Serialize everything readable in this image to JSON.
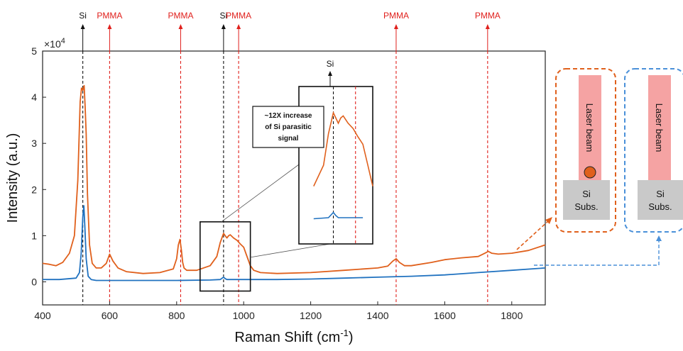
{
  "chart_data": {
    "type": "line",
    "title": "",
    "xlabel": "Raman Shift (cm",
    "xlabel_sup": "-1",
    "xlabel_suffix": ")",
    "ylabel": "Intensity (a.u.)",
    "y_exponent_base": "×10",
    "y_exponent_power": "4",
    "xlim": [
      400,
      1900
    ],
    "ylim": [
      -0.5,
      5
    ],
    "x_ticks": [
      400,
      600,
      800,
      1000,
      1200,
      1400,
      1600,
      1800
    ],
    "y_ticks": [
      0,
      1,
      2,
      3,
      4,
      5
    ],
    "grid": false,
    "series": [
      {
        "color": "#e0601c",
        "x": [
          400,
          420,
          440,
          460,
          480,
          495,
          505,
          512,
          516,
          520,
          524,
          527,
          530,
          534,
          540,
          548,
          560,
          575,
          590,
          600,
          610,
          625,
          650,
          700,
          750,
          790,
          800,
          805,
          810,
          814,
          818,
          822,
          830,
          860,
          900,
          920,
          930,
          940,
          945,
          950,
          955,
          960,
          970,
          980,
          990,
          1000,
          1010,
          1020,
          1030,
          1050,
          1100,
          1200,
          1300,
          1400,
          1430,
          1445,
          1455,
          1465,
          1480,
          1500,
          1560,
          1600,
          1650,
          1700,
          1720,
          1730,
          1740,
          1760,
          1800,
          1850,
          1900
        ],
        "y": [
          0.4,
          0.38,
          0.35,
          0.42,
          0.62,
          1.0,
          2.2,
          3.9,
          4.2,
          4.15,
          4.25,
          3.8,
          3.2,
          1.9,
          0.8,
          0.4,
          0.3,
          0.3,
          0.4,
          0.6,
          0.45,
          0.3,
          0.22,
          0.18,
          0.2,
          0.28,
          0.5,
          0.8,
          0.92,
          0.7,
          0.42,
          0.3,
          0.25,
          0.25,
          0.35,
          0.55,
          0.85,
          1.05,
          1.0,
          0.95,
          1.0,
          1.02,
          0.95,
          0.9,
          0.82,
          0.75,
          0.55,
          0.35,
          0.25,
          0.2,
          0.18,
          0.2,
          0.25,
          0.3,
          0.34,
          0.45,
          0.5,
          0.42,
          0.35,
          0.35,
          0.42,
          0.48,
          0.52,
          0.55,
          0.62,
          0.66,
          0.62,
          0.6,
          0.62,
          0.68,
          0.8
        ]
      },
      {
        "color": "#2072c0",
        "x": [
          400,
          450,
          500,
          510,
          515,
          520,
          523,
          526,
          530,
          536,
          545,
          560,
          600,
          700,
          800,
          900,
          930,
          940,
          945,
          950,
          960,
          1000,
          1100,
          1200,
          1300,
          1400,
          1500,
          1600,
          1700,
          1800,
          1900
        ],
        "y": [
          0.05,
          0.05,
          0.08,
          0.2,
          0.6,
          1.4,
          1.65,
          1.2,
          0.5,
          0.12,
          0.05,
          0.03,
          0.03,
          0.03,
          0.03,
          0.04,
          0.05,
          0.1,
          0.07,
          0.05,
          0.05,
          0.05,
          0.05,
          0.06,
          0.08,
          0.1,
          0.12,
          0.15,
          0.2,
          0.25,
          0.3
        ]
      }
    ],
    "peak_markers": [
      {
        "x": 520,
        "label": "Si",
        "color": "#111111"
      },
      {
        "x": 600,
        "label": "PMMA",
        "color": "#e0201c"
      },
      {
        "x": 812,
        "label": "PMMA",
        "color": "#e0201c"
      },
      {
        "x": 940,
        "label": "Si",
        "color": "#111111"
      },
      {
        "x": 985,
        "label": "PMMA",
        "color": "#e0201c"
      },
      {
        "x": 1455,
        "label": "PMMA",
        "color": "#e0201c"
      },
      {
        "x": 1728,
        "label": "PMMA",
        "color": "#e0201c"
      }
    ],
    "inset": {
      "peak_label": "Si",
      "annotation_lines": [
        "~12X increase",
        "of Si parasitic",
        "signal"
      ],
      "zoom_xlim": [
        870,
        1020
      ],
      "zoom_ylim": [
        -0.2,
        1.3
      ]
    }
  },
  "diagrams": [
    {
      "beam_label": "Laser beam",
      "substrate_line1": "Si",
      "substrate_line2": "Subs.",
      "frame_color": "#e0601c",
      "has_particle": true
    },
    {
      "beam_label": "Laser beam",
      "substrate_line1": "Si",
      "substrate_line2": "Subs.",
      "frame_color": "#4a90d9",
      "has_particle": false
    }
  ]
}
